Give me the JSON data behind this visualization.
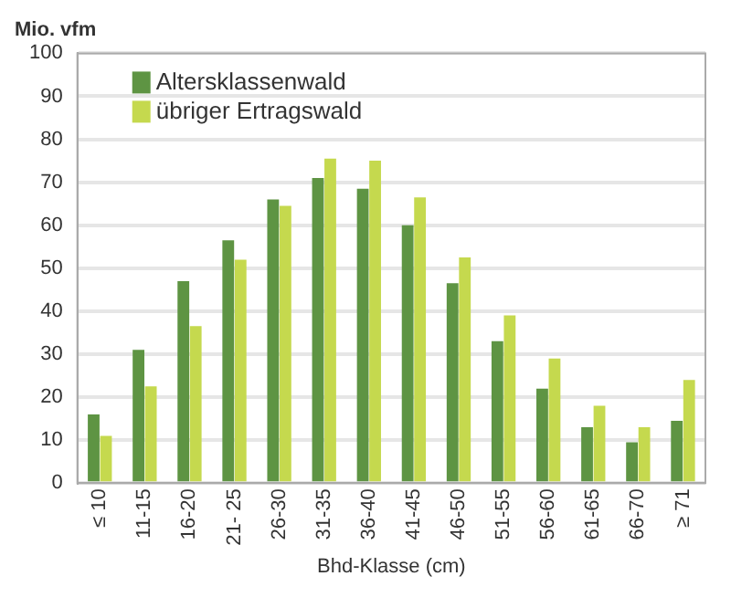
{
  "chart_data": {
    "type": "bar",
    "ylabel": "Mio. vfm",
    "xlabel": "Bhd-Klasse (cm)",
    "categories": [
      "≤ 10",
      "11-15",
      "16-20",
      "21- 25",
      "26-30",
      "31-35",
      "36-40",
      "41-45",
      "46-50",
      "51-55",
      "56-60",
      "61-65",
      "66-70",
      "≥ 71"
    ],
    "series": [
      {
        "name": "Altersklassenwald",
        "color": "#5e9443",
        "values": [
          16,
          31,
          47,
          56.5,
          66,
          71,
          68.5,
          60,
          46.5,
          33,
          22,
          13,
          9.5,
          14.5
        ]
      },
      {
        "name": "übriger Ertragswald",
        "color": "#c5d94e",
        "values": [
          11,
          22.5,
          36.5,
          52,
          64.5,
          75.5,
          75,
          66.5,
          52.5,
          39,
          29,
          18,
          13,
          24
        ]
      }
    ],
    "ylim": [
      0,
      100
    ],
    "yticks": [
      0,
      10,
      20,
      30,
      40,
      50,
      60,
      70,
      80,
      90,
      100
    ],
    "grid": "y",
    "legend": "top left"
  }
}
